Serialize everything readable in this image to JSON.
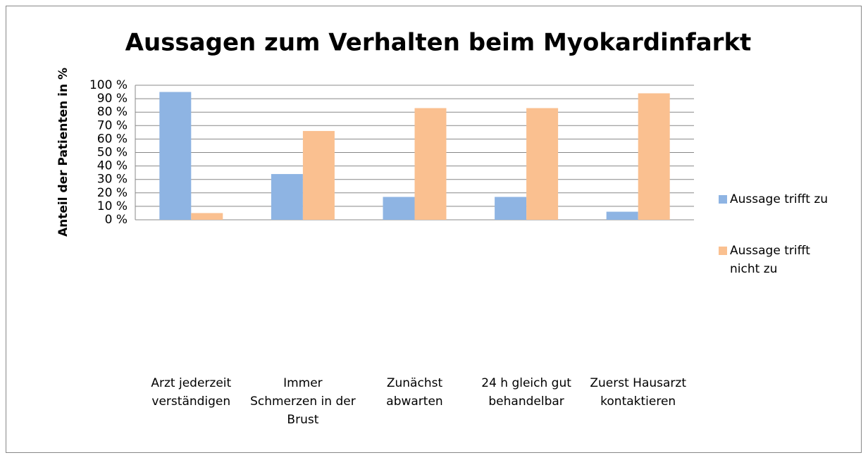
{
  "chart_data": {
    "type": "bar",
    "title": "Aussagen zum Verhalten beim Myokardinfarkt",
    "y_label": "Anteil der Patienten in %",
    "categories": [
      "Arzt jederzeit verständigen",
      "Immer Schmerzen in der Brust",
      "Zunächst abwarten",
      "24 h gleich gut behandelbar",
      "Zuerst Hausarzt kontaktieren"
    ],
    "series": [
      {
        "name": "Aussage trifft zu",
        "color": "#8eb4e3",
        "values": [
          95,
          34,
          17,
          17,
          6
        ]
      },
      {
        "name": "Aussage trifft nicht zu",
        "color": "#fac090",
        "values": [
          5,
          66,
          83,
          83,
          94
        ]
      }
    ],
    "ylim": [
      0,
      100
    ],
    "yticks": [
      {
        "value": 0,
        "label": "0 %"
      },
      {
        "value": 10,
        "label": "10 %"
      },
      {
        "value": 20,
        "label": "20 %"
      },
      {
        "value": 30,
        "label": "30 %"
      },
      {
        "value": 40,
        "label": "40 %"
      },
      {
        "value": 50,
        "label": "50 %"
      },
      {
        "value": 60,
        "label": "60 %"
      },
      {
        "value": 70,
        "label": "70 %"
      },
      {
        "value": 80,
        "label": "80 %"
      },
      {
        "value": 90,
        "label": "90 %"
      },
      {
        "value": 100,
        "label": "100 %"
      }
    ],
    "grid": true,
    "legend": "right"
  }
}
